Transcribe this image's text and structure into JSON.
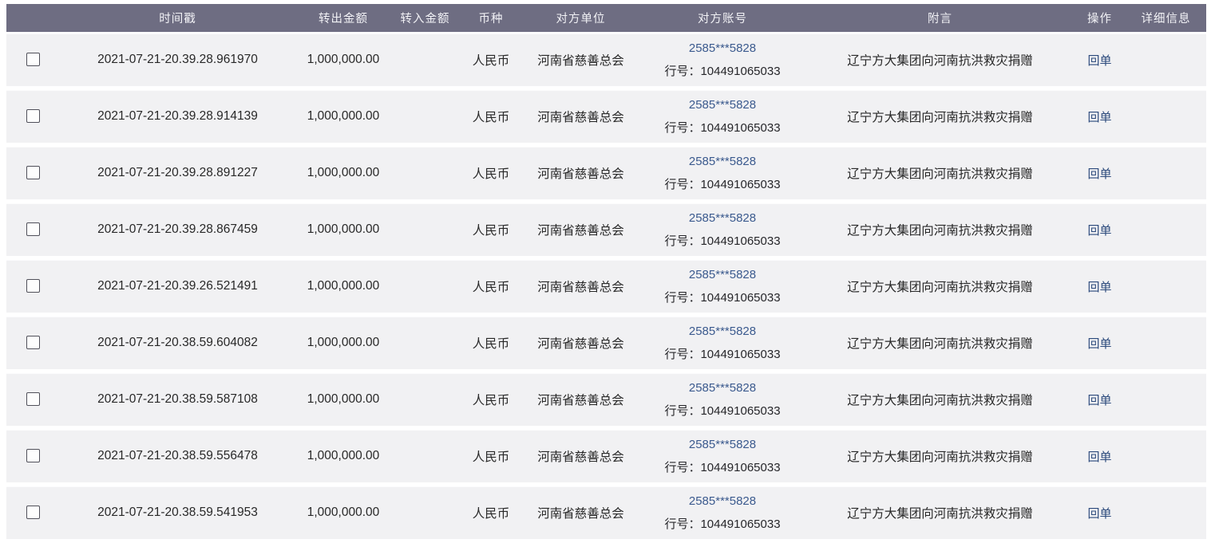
{
  "colors": {
    "header_bg": "#6e6d82",
    "row_bg": "#f1f1f3",
    "account_blue": "#3b5a8e",
    "link_blue": "#2c4a7c"
  },
  "table": {
    "columns": {
      "checkbox": "",
      "timestamp": "时间戳",
      "amount_out": "转出金额",
      "amount_in": "转入金额",
      "currency": "币种",
      "counterparty": "对方单位",
      "account": "对方账号",
      "memo": "附言",
      "action": "操作",
      "detail": "详细信息"
    },
    "rows": [
      {
        "timestamp": "2021-07-21-20.39.28.961970",
        "amount_out": "1,000,000.00",
        "amount_in": "",
        "currency": "人民币",
        "counterparty": "河南省慈善总会",
        "account_masked": "2585***5828",
        "bank_line": "行号：104491065033",
        "memo": "辽宁方大集团向河南抗洪救灾捐赠",
        "action": "回单",
        "detail": ""
      },
      {
        "timestamp": "2021-07-21-20.39.28.914139",
        "amount_out": "1,000,000.00",
        "amount_in": "",
        "currency": "人民币",
        "counterparty": "河南省慈善总会",
        "account_masked": "2585***5828",
        "bank_line": "行号：104491065033",
        "memo": "辽宁方大集团向河南抗洪救灾捐赠",
        "action": "回单",
        "detail": ""
      },
      {
        "timestamp": "2021-07-21-20.39.28.891227",
        "amount_out": "1,000,000.00",
        "amount_in": "",
        "currency": "人民币",
        "counterparty": "河南省慈善总会",
        "account_masked": "2585***5828",
        "bank_line": "行号：104491065033",
        "memo": "辽宁方大集团向河南抗洪救灾捐赠",
        "action": "回单",
        "detail": ""
      },
      {
        "timestamp": "2021-07-21-20.39.28.867459",
        "amount_out": "1,000,000.00",
        "amount_in": "",
        "currency": "人民币",
        "counterparty": "河南省慈善总会",
        "account_masked": "2585***5828",
        "bank_line": "行号：104491065033",
        "memo": "辽宁方大集团向河南抗洪救灾捐赠",
        "action": "回单",
        "detail": ""
      },
      {
        "timestamp": "2021-07-21-20.39.26.521491",
        "amount_out": "1,000,000.00",
        "amount_in": "",
        "currency": "人民币",
        "counterparty": "河南省慈善总会",
        "account_masked": "2585***5828",
        "bank_line": "行号：104491065033",
        "memo": "辽宁方大集团向河南抗洪救灾捐赠",
        "action": "回单",
        "detail": ""
      },
      {
        "timestamp": "2021-07-21-20.38.59.604082",
        "amount_out": "1,000,000.00",
        "amount_in": "",
        "currency": "人民币",
        "counterparty": "河南省慈善总会",
        "account_masked": "2585***5828",
        "bank_line": "行号：104491065033",
        "memo": "辽宁方大集团向河南抗洪救灾捐赠",
        "action": "回单",
        "detail": ""
      },
      {
        "timestamp": "2021-07-21-20.38.59.587108",
        "amount_out": "1,000,000.00",
        "amount_in": "",
        "currency": "人民币",
        "counterparty": "河南省慈善总会",
        "account_masked": "2585***5828",
        "bank_line": "行号：104491065033",
        "memo": "辽宁方大集团向河南抗洪救灾捐赠",
        "action": "回单",
        "detail": ""
      },
      {
        "timestamp": "2021-07-21-20.38.59.556478",
        "amount_out": "1,000,000.00",
        "amount_in": "",
        "currency": "人民币",
        "counterparty": "河南省慈善总会",
        "account_masked": "2585***5828",
        "bank_line": "行号：104491065033",
        "memo": "辽宁方大集团向河南抗洪救灾捐赠",
        "action": "回单",
        "detail": ""
      },
      {
        "timestamp": "2021-07-21-20.38.59.541953",
        "amount_out": "1,000,000.00",
        "amount_in": "",
        "currency": "人民币",
        "counterparty": "河南省慈善总会",
        "account_masked": "2585***5828",
        "bank_line": "行号：104491065033",
        "memo": "辽宁方大集团向河南抗洪救灾捐赠",
        "action": "回单",
        "detail": ""
      }
    ]
  }
}
